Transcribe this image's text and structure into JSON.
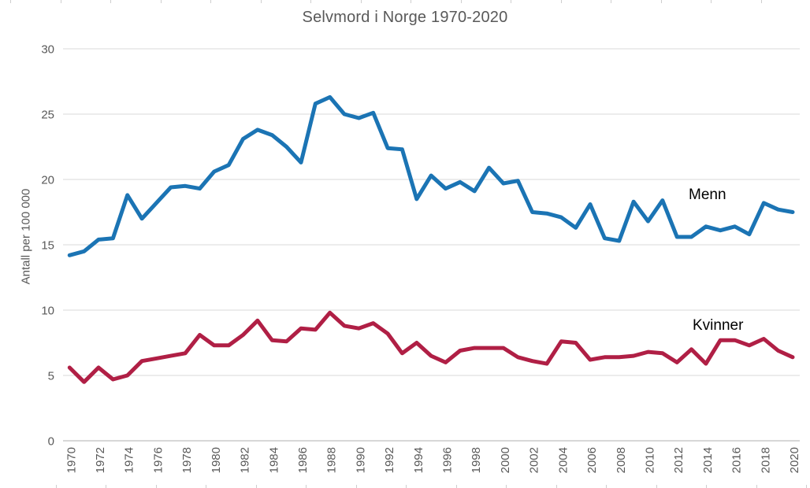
{
  "title": "Selvmord i Norge 1970-2020",
  "y_axis": {
    "title": "Antall per 100 000",
    "ticks": [
      0,
      5,
      10,
      15,
      20,
      25,
      30
    ],
    "min": 0,
    "max": 30
  },
  "x_axis": {
    "tick_labels": [
      "1970",
      "1972",
      "1974",
      "1976",
      "1978",
      "1980",
      "1982",
      "1984",
      "1986",
      "1988",
      "1990",
      "1992",
      "1994",
      "1996",
      "1998",
      "2000",
      "2002",
      "2004",
      "2006",
      "2008",
      "2010",
      "2012",
      "2014",
      "2016",
      "2018",
      "2020"
    ]
  },
  "series_labels": {
    "menn": "Menn",
    "kvinner": "Kvinner"
  },
  "colors": {
    "menn": "#1b74b4",
    "kvinner": "#b01f45",
    "grid": "#d9d9d9",
    "axis": "#bfbfbf",
    "tick_text": "#595959",
    "title_text": "#595959",
    "series_label_text": "#000000"
  },
  "chart_data": {
    "type": "line",
    "title": "Selvmord i Norge 1970-2020",
    "xlabel": "",
    "ylabel": "Antall per 100 000",
    "ylim": [
      0,
      30
    ],
    "grid": true,
    "legend": "inline-labels",
    "x": [
      1970,
      1971,
      1972,
      1973,
      1974,
      1975,
      1976,
      1977,
      1978,
      1979,
      1980,
      1981,
      1982,
      1983,
      1984,
      1985,
      1986,
      1987,
      1988,
      1989,
      1990,
      1991,
      1992,
      1993,
      1994,
      1995,
      1996,
      1997,
      1998,
      1999,
      2000,
      2001,
      2002,
      2003,
      2004,
      2005,
      2006,
      2007,
      2008,
      2009,
      2010,
      2011,
      2012,
      2013,
      2014,
      2015,
      2016,
      2017,
      2018,
      2019,
      2020
    ],
    "series": [
      {
        "name": "Menn",
        "color": "#1b74b4",
        "values": [
          14.2,
          14.5,
          15.4,
          15.5,
          18.8,
          17.0,
          18.2,
          19.4,
          19.5,
          19.3,
          20.6,
          21.1,
          23.1,
          23.8,
          23.4,
          22.5,
          21.3,
          25.8,
          26.3,
          25.0,
          24.7,
          25.1,
          22.4,
          22.3,
          18.5,
          20.3,
          19.3,
          19.8,
          19.1,
          20.9,
          19.7,
          19.9,
          17.5,
          17.4,
          17.1,
          16.3,
          18.1,
          15.5,
          15.3,
          18.3,
          16.8,
          18.4,
          15.6,
          15.6,
          16.4,
          16.1,
          16.4,
          15.8,
          18.2,
          17.7,
          17.5
        ]
      },
      {
        "name": "Kvinner",
        "color": "#b01f45",
        "values": [
          5.6,
          4.5,
          5.6,
          4.7,
          5.0,
          6.1,
          6.3,
          6.5,
          6.7,
          8.1,
          7.3,
          7.3,
          8.1,
          9.2,
          7.7,
          7.6,
          8.6,
          8.5,
          9.8,
          8.8,
          8.6,
          9.0,
          8.2,
          6.7,
          7.5,
          6.5,
          6.0,
          6.9,
          7.1,
          7.1,
          7.1,
          6.4,
          6.1,
          5.9,
          7.6,
          7.5,
          6.2,
          6.4,
          6.4,
          6.5,
          6.8,
          6.7,
          6.0,
          7.0,
          5.9,
          7.7,
          7.7,
          7.3,
          7.8,
          6.9,
          6.4
        ]
      }
    ]
  }
}
